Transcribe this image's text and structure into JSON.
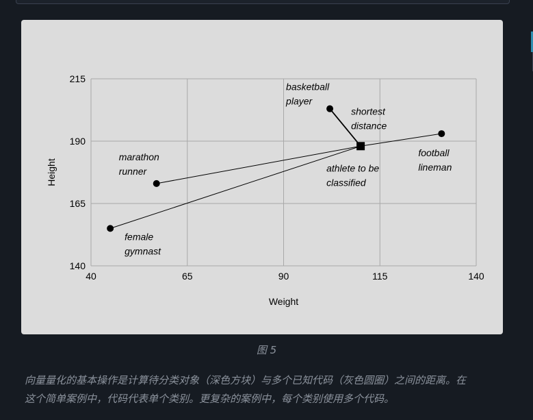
{
  "figure": {
    "caption": "图 5",
    "description_lines": [
      "向量量化的基本操作是计算待分类对象（深色方块）与多个已知代码（灰色圆圈）之间的距离。在",
      "这个简单案例中，代码代表单个类别。更复杂的案例中，每个类别使用多个代码。"
    ]
  },
  "chart_data": {
    "type": "scatter",
    "title": "",
    "xlabel": "Weight",
    "ylabel": "Height",
    "xlim": [
      40,
      140
    ],
    "ylim": [
      140,
      215
    ],
    "xticks": [
      40,
      65,
      90,
      115,
      140
    ],
    "yticks": [
      140,
      165,
      190,
      215
    ],
    "grid": true,
    "codes": [
      {
        "id": "marathon",
        "label": [
          "marathon",
          "runner"
        ],
        "x": 57,
        "y": 173
      },
      {
        "id": "gymnast",
        "label": [
          "female",
          "gymnast"
        ],
        "x": 45,
        "y": 155
      },
      {
        "id": "basketball",
        "label": [
          "basketball",
          "player"
        ],
        "x": 102,
        "y": 203
      },
      {
        "id": "football",
        "label": [
          "football",
          "lineman"
        ],
        "x": 131,
        "y": 193
      }
    ],
    "target": {
      "id": "athlete",
      "label": [
        "athlete to be",
        "classified"
      ],
      "x": 110,
      "y": 188
    },
    "shortest_distance_label": [
      "shortest",
      "distance"
    ],
    "colors": {
      "background": "#dcdcdc",
      "grid": "#a8a8a8",
      "marks": "#000000"
    }
  }
}
